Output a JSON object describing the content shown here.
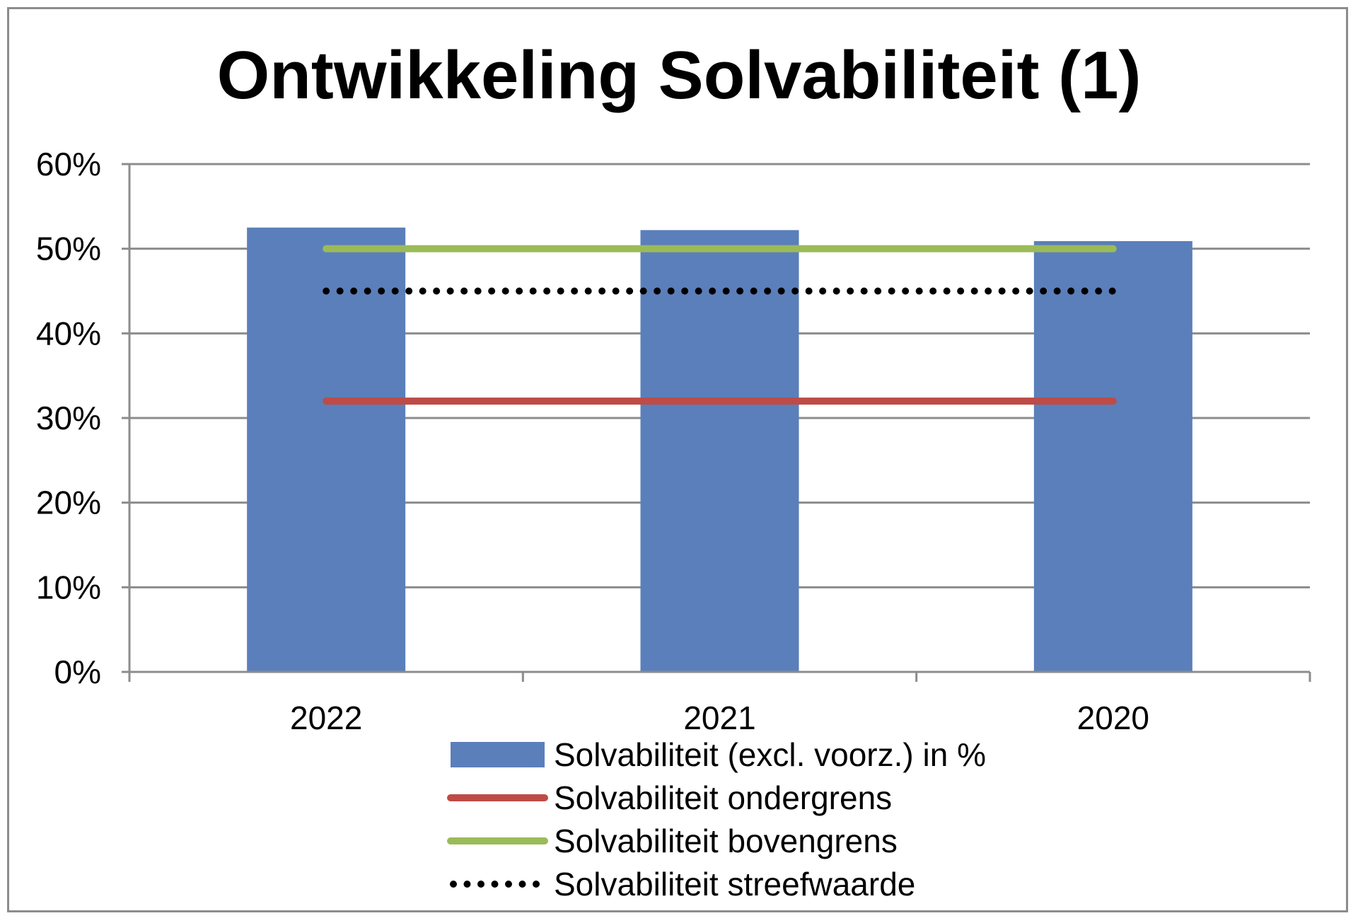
{
  "chart_data": {
    "type": "bar",
    "title": "Ontwikkeling Solvabiliteit (1)",
    "categories": [
      "2022",
      "2021",
      "2020"
    ],
    "y_ticks": [
      "0%",
      "10%",
      "20%",
      "30%",
      "40%",
      "50%",
      "60%"
    ],
    "ylim": [
      0,
      60
    ],
    "grid": true,
    "legend_position": "bottom",
    "series": [
      {
        "name": "Solvabiliteit (excl. voorz.) in %",
        "kind": "bar",
        "color": "#5b7fba",
        "values": [
          52.5,
          52.2,
          50.9
        ]
      },
      {
        "name": "Solvabiliteit ondergrens",
        "kind": "line",
        "style": "solid",
        "color": "#be4b48",
        "values": [
          32,
          32,
          32
        ]
      },
      {
        "name": "Solvabiliteit bovengrens",
        "kind": "line",
        "style": "solid",
        "color": "#9bbb59",
        "values": [
          50,
          50,
          50
        ]
      },
      {
        "name": "Solvabiliteit streefwaarde",
        "kind": "line",
        "style": "dotted",
        "color": "#000000",
        "values": [
          45,
          45,
          45
        ]
      }
    ]
  }
}
